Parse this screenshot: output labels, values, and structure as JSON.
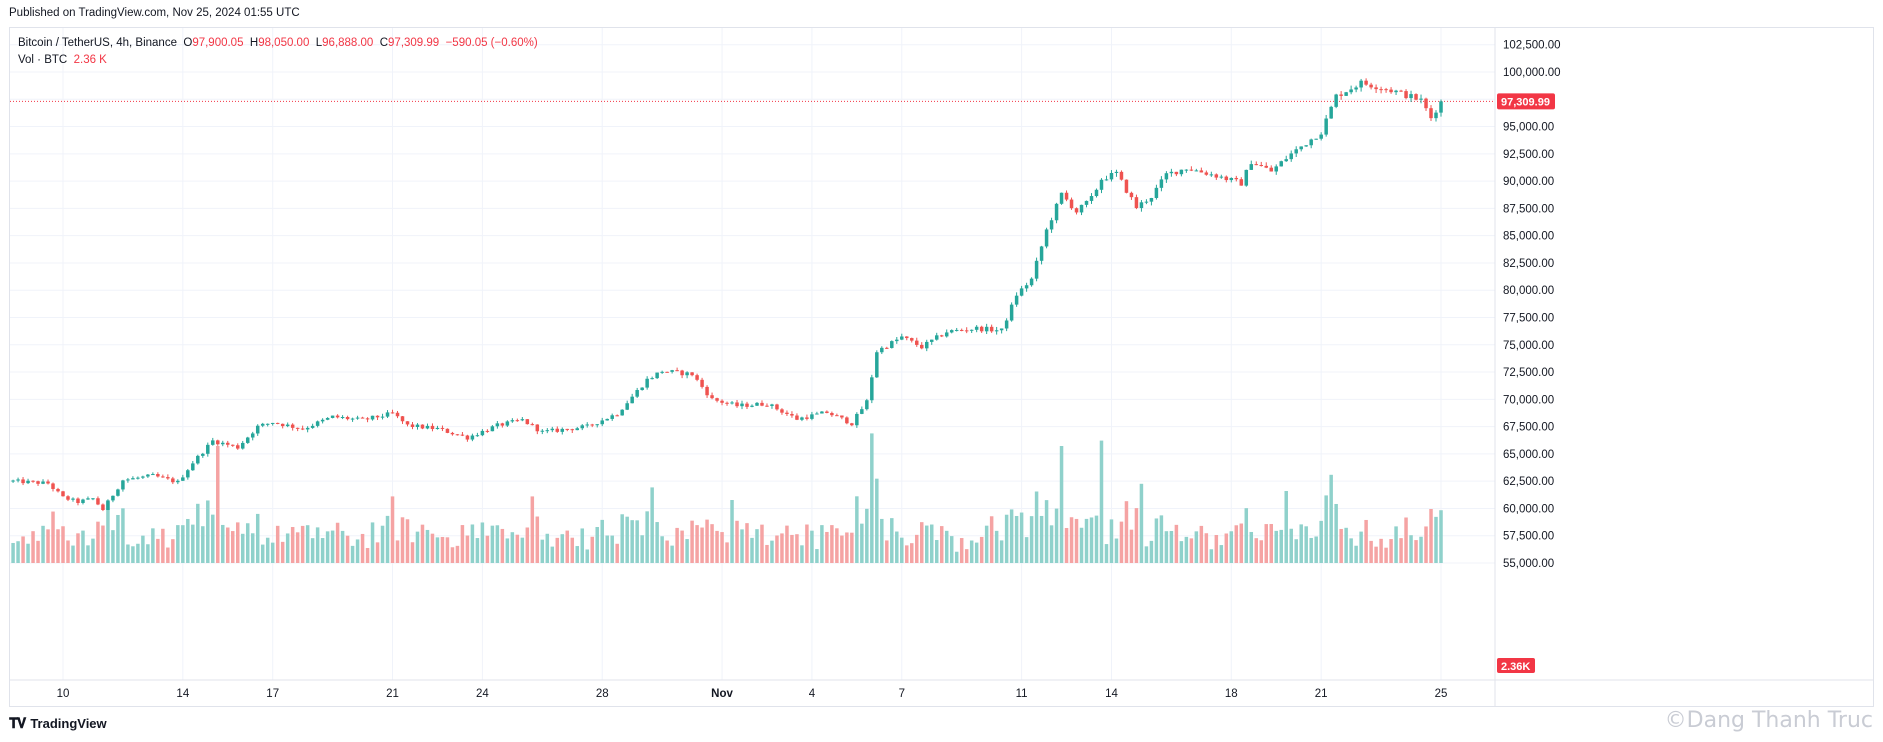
{
  "header": {
    "published": "Published on TradingView.com, Nov 25, 2024 01:55 UTC"
  },
  "legend": {
    "symbol": "Bitcoin / TetherUS, 4h, Binance",
    "o_label": "O",
    "o_value": "97,900.05",
    "h_label": "H",
    "h_value": "98,050.00",
    "l_label": "L",
    "l_value": "96,888.00",
    "c_label": "C",
    "c_value": "97,309.99",
    "change": "−590.05 (−0.60%)",
    "vol_label": "Vol · BTC",
    "vol_value": "2.36 K"
  },
  "footer": {
    "brand": "TradingView",
    "watermark": "©Dang Thanh Truc"
  },
  "colors": {
    "up": "#26a69a",
    "down": "#ef5350",
    "up_volume": "#8fd1cb",
    "down_volume": "#f5a3a3",
    "last_price": "#f23645",
    "grid": "#f0f3fa"
  },
  "chart_data": {
    "type": "candlestick",
    "symbol": "Bitcoin / TetherUS",
    "interval": "4h",
    "exchange": "Binance",
    "y_axis": {
      "ticks": [
        "102,500.00",
        "100,000.00",
        "97,500.00",
        "95,000.00",
        "92,500.00",
        "90,000.00",
        "87,500.00",
        "85,000.00",
        "82,500.00",
        "80,000.00",
        "77,500.00",
        "75,000.00",
        "72,500.00",
        "70,000.00",
        "67,500.00",
        "65,000.00",
        "62,500.00",
        "60,000.00",
        "57,500.00",
        "55,000.00"
      ],
      "range": [
        55000,
        103500
      ]
    },
    "x_axis": {
      "ticks": [
        {
          "label": "10",
          "date": "2024-10-10"
        },
        {
          "label": "14",
          "date": "2024-10-14"
        },
        {
          "label": "17",
          "date": "2024-10-17"
        },
        {
          "label": "21",
          "date": "2024-10-21"
        },
        {
          "label": "24",
          "date": "2024-10-24"
        },
        {
          "label": "28",
          "date": "2024-10-28"
        },
        {
          "label": "Nov",
          "date": "2024-11-01"
        },
        {
          "label": "4",
          "date": "2024-11-04"
        },
        {
          "label": "7",
          "date": "2024-11-07"
        },
        {
          "label": "11",
          "date": "2024-11-11"
        },
        {
          "label": "14",
          "date": "2024-11-14"
        },
        {
          "label": "18",
          "date": "2024-11-18"
        },
        {
          "label": "21",
          "date": "2024-11-21"
        },
        {
          "label": "25",
          "date": "2024-11-25"
        }
      ],
      "start": "2024-10-08T08:00",
      "end": "2024-11-25T00:00"
    },
    "last_price": 97309.99,
    "last_price_label": "97,309.99",
    "last_volume_label": "2.36K",
    "price_path": [
      {
        "date": "2024-10-08T08:00",
        "price": 62500
      },
      {
        "date": "2024-10-09T12:00",
        "price": 62300
      },
      {
        "date": "2024-10-10T00:00",
        "price": 61000
      },
      {
        "date": "2024-10-10T12:00",
        "price": 60600
      },
      {
        "date": "2024-10-11T00:00",
        "price": 60900
      },
      {
        "date": "2024-10-11T08:00",
        "price": 59900
      },
      {
        "date": "2024-10-12T00:00",
        "price": 62600
      },
      {
        "date": "2024-10-13T00:00",
        "price": 63000
      },
      {
        "date": "2024-10-13T20:00",
        "price": 62400
      },
      {
        "date": "2024-10-14T08:00",
        "price": 64200
      },
      {
        "date": "2024-10-15T00:00",
        "price": 66200
      },
      {
        "date": "2024-10-15T20:00",
        "price": 65600
      },
      {
        "date": "2024-10-16T12:00",
        "price": 67500
      },
      {
        "date": "2024-10-17T00:00",
        "price": 67900
      },
      {
        "date": "2024-10-18T00:00",
        "price": 67300
      },
      {
        "date": "2024-10-19T00:00",
        "price": 68400
      },
      {
        "date": "2024-10-20T00:00",
        "price": 68100
      },
      {
        "date": "2024-10-21T00:00",
        "price": 68700
      },
      {
        "date": "2024-10-21T12:00",
        "price": 67600
      },
      {
        "date": "2024-10-22T12:00",
        "price": 67300
      },
      {
        "date": "2024-10-23T12:00",
        "price": 66500
      },
      {
        "date": "2024-10-24T12:00",
        "price": 67600
      },
      {
        "date": "2024-10-25T08:00",
        "price": 68100
      },
      {
        "date": "2024-10-26T00:00",
        "price": 67000
      },
      {
        "date": "2024-10-27T12:00",
        "price": 67500
      },
      {
        "date": "2024-10-28T12:00",
        "price": 68700
      },
      {
        "date": "2024-10-29T12:00",
        "price": 71800
      },
      {
        "date": "2024-10-30T00:00",
        "price": 72600
      },
      {
        "date": "2024-10-31T00:00",
        "price": 72300
      },
      {
        "date": "2024-10-31T16:00",
        "price": 70000
      },
      {
        "date": "2024-11-01T12:00",
        "price": 69400
      },
      {
        "date": "2024-11-02T12:00",
        "price": 69600
      },
      {
        "date": "2024-11-03T12:00",
        "price": 68200
      },
      {
        "date": "2024-11-04T12:00",
        "price": 68800
      },
      {
        "date": "2024-11-05T08:00",
        "price": 67800
      },
      {
        "date": "2024-11-05T20:00",
        "price": 69800
      },
      {
        "date": "2024-11-06T04:00",
        "price": 74400
      },
      {
        "date": "2024-11-07T00:00",
        "price": 75700
      },
      {
        "date": "2024-11-07T16:00",
        "price": 74800
      },
      {
        "date": "2024-11-08T12:00",
        "price": 76200
      },
      {
        "date": "2024-11-09T12:00",
        "price": 76500
      },
      {
        "date": "2024-11-10T08:00",
        "price": 76300
      },
      {
        "date": "2024-11-10T20:00",
        "price": 79600
      },
      {
        "date": "2024-11-11T08:00",
        "price": 81000
      },
      {
        "date": "2024-11-11T20:00",
        "price": 85500
      },
      {
        "date": "2024-11-12T08:00",
        "price": 88800
      },
      {
        "date": "2024-11-12T20:00",
        "price": 87200
      },
      {
        "date": "2024-11-13T08:00",
        "price": 88400
      },
      {
        "date": "2024-11-13T16:00",
        "price": 90200
      },
      {
        "date": "2024-11-14T04:00",
        "price": 90700
      },
      {
        "date": "2024-11-14T20:00",
        "price": 87600
      },
      {
        "date": "2024-11-15T08:00",
        "price": 88600
      },
      {
        "date": "2024-11-15T20:00",
        "price": 90600
      },
      {
        "date": "2024-11-16T12:00",
        "price": 91200
      },
      {
        "date": "2024-11-17T12:00",
        "price": 90500
      },
      {
        "date": "2024-11-18T08:00",
        "price": 89800
      },
      {
        "date": "2024-11-18T16:00",
        "price": 91800
      },
      {
        "date": "2024-11-19T08:00",
        "price": 90900
      },
      {
        "date": "2024-11-20T00:00",
        "price": 92500
      },
      {
        "date": "2024-11-21T00:00",
        "price": 94500
      },
      {
        "date": "2024-11-21T12:00",
        "price": 97800
      },
      {
        "date": "2024-11-22T08:00",
        "price": 99000
      },
      {
        "date": "2024-11-22T20:00",
        "price": 98700
      },
      {
        "date": "2024-11-23T12:00",
        "price": 98200
      },
      {
        "date": "2024-11-24T08:00",
        "price": 97400
      },
      {
        "date": "2024-11-24T16:00",
        "price": 95800
      },
      {
        "date": "2024-11-25T00:00",
        "price": 97310
      }
    ],
    "volume_spikes": [
      {
        "date": "2024-10-10T16:00",
        "volume": 1.8
      },
      {
        "date": "2024-10-15T04:00",
        "volume": 6.5
      },
      {
        "date": "2024-10-21T00:00",
        "volume": 3.7
      },
      {
        "date": "2024-10-25T16:00",
        "volume": 3.7
      },
      {
        "date": "2024-10-29T16:00",
        "volume": 4.2
      },
      {
        "date": "2024-11-01T08:00",
        "volume": 3.5
      },
      {
        "date": "2024-11-06T00:00",
        "volume": 7.2
      },
      {
        "date": "2024-11-12T08:00",
        "volume": 6.5
      },
      {
        "date": "2024-11-13T16:00",
        "volume": 6.8
      },
      {
        "date": "2024-11-15T00:00",
        "volume": 4.4
      },
      {
        "date": "2024-11-19T20:00",
        "volume": 4.0
      },
      {
        "date": "2024-11-21T08:00",
        "volume": 4.9
      },
      {
        "date": "2024-11-24T16:00",
        "volume": 3.0
      }
    ]
  }
}
